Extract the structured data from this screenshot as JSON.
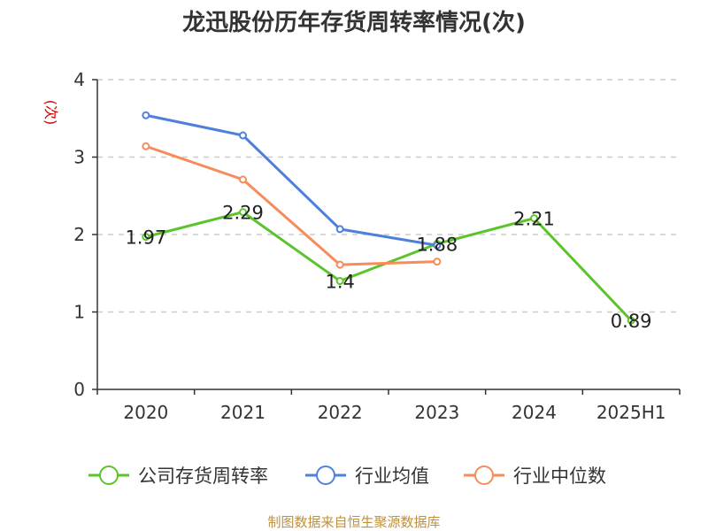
{
  "colors": {
    "company": "#5cc42b",
    "industry_avg": "#4f7fdc",
    "industry_median": "#f58c5a",
    "unit": "#cc0000",
    "source": "#c0903a"
  },
  "chart_data": {
    "type": "line",
    "title": "龙迅股份历年存货周转率情况(次)",
    "ylabel": "(次)",
    "xlabel": "",
    "categories": [
      "2020",
      "2021",
      "2022",
      "2023",
      "2024",
      "2025H1"
    ],
    "ylim": [
      0,
      4
    ],
    "yticks": [
      "0",
      "1",
      "2",
      "3",
      "4"
    ],
    "grid": true,
    "legend_position": "bottom",
    "series": [
      {
        "name": "公司存货周转率",
        "color_key": "company",
        "values": [
          1.97,
          2.29,
          1.4,
          1.88,
          2.21,
          0.89
        ],
        "labels": [
          "1.97",
          "2.29",
          "1.4",
          "1.88",
          "2.21",
          "0.89"
        ]
      },
      {
        "name": "行业均值",
        "color_key": "industry_avg",
        "values": [
          3.54,
          3.28,
          2.07,
          1.86,
          null,
          null
        ]
      },
      {
        "name": "行业中位数",
        "color_key": "industry_median",
        "values": [
          3.14,
          2.71,
          1.61,
          1.65,
          null,
          null
        ]
      }
    ]
  },
  "footer": {
    "source": "制图数据来自恒生聚源数据库"
  }
}
